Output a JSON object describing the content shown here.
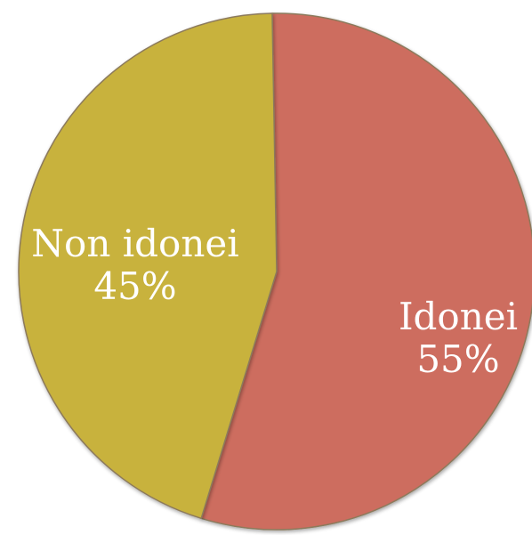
{
  "chart_data": {
    "type": "pie",
    "slices": [
      {
        "name": "Idonei",
        "value": 55,
        "value_label": "55%",
        "color": "#CD6D5E"
      },
      {
        "name": "Non idonei",
        "value": 45,
        "value_label": "45%",
        "color": "#C8B23E"
      }
    ],
    "title": "",
    "legend": "none",
    "labels": "inside",
    "border_color": "#8C7A5C"
  }
}
